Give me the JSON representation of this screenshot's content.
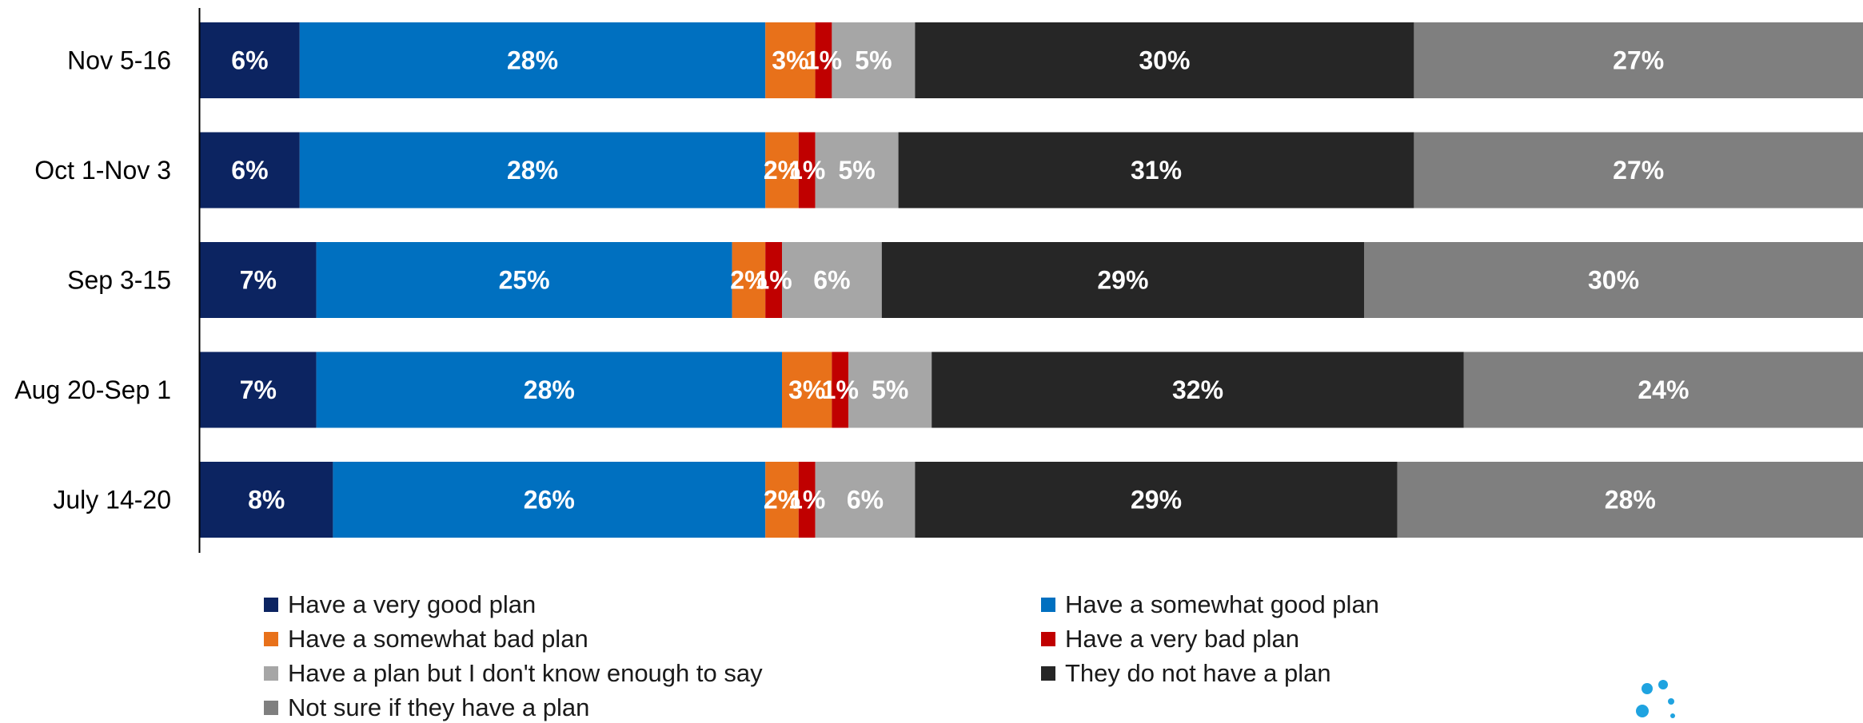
{
  "chart_data": {
    "type": "bar",
    "orientation": "horizontal",
    "stacked": true,
    "categories": [
      "Nov 5-16",
      "Oct 1-Nov 3",
      "Sep 3-15",
      "Aug 20-Sep 1",
      "July 14-20"
    ],
    "series": [
      {
        "name": "Have a very good plan",
        "color": "#0c2461",
        "values": [
          6,
          6,
          7,
          7,
          8
        ],
        "labels": [
          "6%",
          "6%",
          "7%",
          "7%",
          "8%"
        ]
      },
      {
        "name": "Have a somewhat good plan",
        "color": "#0070c0",
        "values": [
          28,
          28,
          25,
          28,
          26
        ],
        "labels": [
          "28%",
          "28%",
          "25%",
          "28%",
          "26%"
        ]
      },
      {
        "name": "Have a somewhat bad plan",
        "color": "#e8711a",
        "values": [
          3,
          2,
          2,
          3,
          2
        ],
        "labels": [
          "3%",
          "2%",
          "2%",
          "3%",
          "2%"
        ]
      },
      {
        "name": "Have a very bad plan",
        "color": "#c00000",
        "values": [
          1,
          1,
          1,
          1,
          1
        ],
        "labels": [
          "1%",
          "1%",
          "1%",
          "1%",
          "1%"
        ]
      },
      {
        "name": "Have a plan but I don't know enough to say",
        "color": "#a6a6a6",
        "values": [
          5,
          5,
          6,
          5,
          6
        ],
        "labels": [
          "5%",
          "5%",
          "6%",
          "5%",
          "6%"
        ]
      },
      {
        "name": "They do not have a plan",
        "color": "#262626",
        "values": [
          30,
          31,
          29,
          32,
          29
        ],
        "labels": [
          "30%",
          "31%",
          "29%",
          "32%",
          "29%"
        ]
      },
      {
        "name": "Not sure if they have a plan",
        "color": "#7f7f7f",
        "values": [
          27,
          27,
          30,
          24,
          28
        ],
        "labels": [
          "27%",
          "27%",
          "30%",
          "24%",
          "28%"
        ]
      }
    ],
    "xlim": [
      0,
      100
    ],
    "grid": false,
    "legend_position": "bottom"
  },
  "logo": {
    "name": "dots-logo-icon",
    "color": "#1fa3e0"
  }
}
